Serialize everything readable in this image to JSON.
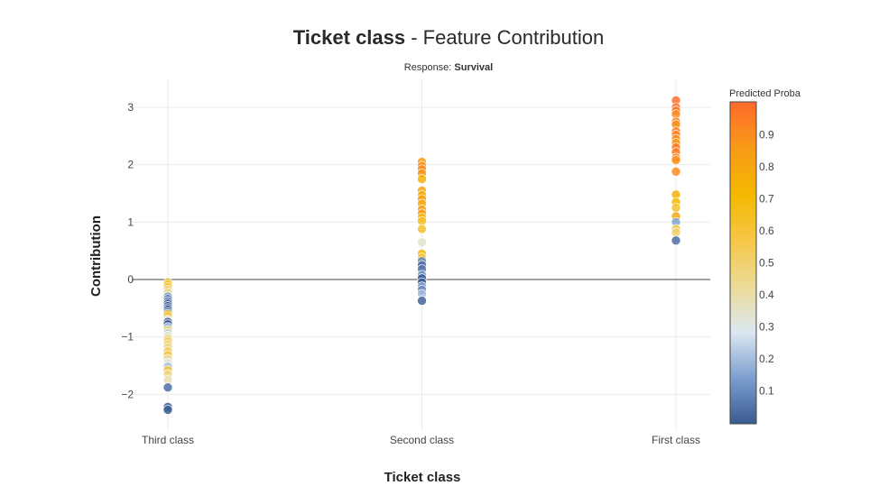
{
  "chart_data": {
    "type": "scatter",
    "title_bold": "Ticket class",
    "title_rest": " - Feature Contribution",
    "subtitle_label": "Response: ",
    "subtitle_value": "Survival",
    "xlabel": "Ticket class",
    "ylabel": "Contribution",
    "categories": [
      "Third class",
      "Second class",
      "First class"
    ],
    "ylim": [
      -2.7,
      3.4
    ],
    "yticks": [
      -2,
      -1,
      0,
      1,
      2,
      3
    ],
    "ytick_labels": [
      "−2",
      "−1",
      "0",
      "1",
      "2",
      "3"
    ],
    "grid": true,
    "colorbar": {
      "title": "Predicted Proba",
      "range": [
        0,
        1
      ],
      "ticks": [
        0.1,
        0.2,
        0.3,
        0.4,
        0.5,
        0.6,
        0.7,
        0.8,
        0.9
      ],
      "tick_labels": [
        "0.1",
        "0.2",
        "0.3",
        "0.4",
        "0.5",
        "0.6",
        "0.7",
        "0.8",
        "0.9"
      ],
      "colorscale": [
        "#3a5a92",
        "#7d9fcf",
        "#dce8f0",
        "#ecdb97",
        "#f6c745",
        "#f4b800",
        "#f99a18",
        "#ff6a2c"
      ]
    },
    "series": [
      {
        "category": "Third class",
        "points": [
          [
            -0.05,
            0.62
          ],
          [
            -0.09,
            0.66
          ],
          [
            -0.13,
            0.58
          ],
          [
            -0.18,
            0.5
          ],
          [
            -0.22,
            0.4
          ],
          [
            -0.3,
            0.12
          ],
          [
            -0.34,
            0.06
          ],
          [
            -0.38,
            0.08
          ],
          [
            -0.42,
            0.04
          ],
          [
            -0.46,
            0.02
          ],
          [
            -0.5,
            0.01
          ],
          [
            -0.53,
            0.02
          ],
          [
            -0.57,
            0.03
          ],
          [
            -0.6,
            0.62
          ],
          [
            -0.64,
            0.58
          ],
          [
            -0.7,
            0.3
          ],
          [
            -0.74,
            0.01
          ],
          [
            -0.78,
            0.0
          ],
          [
            -0.83,
            0.22
          ],
          [
            -0.88,
            0.5
          ],
          [
            -0.93,
            0.25
          ],
          [
            -0.98,
            0.33
          ],
          [
            -1.03,
            0.46
          ],
          [
            -1.08,
            0.56
          ],
          [
            -1.13,
            0.48
          ],
          [
            -1.18,
            0.44
          ],
          [
            -1.25,
            0.52
          ],
          [
            -1.32,
            0.62
          ],
          [
            -1.38,
            0.4
          ],
          [
            -1.45,
            0.3
          ],
          [
            -1.52,
            0.2
          ],
          [
            -1.58,
            0.58
          ],
          [
            -1.65,
            0.45
          ],
          [
            -1.75,
            0.38
          ],
          [
            -1.88,
            0.04
          ],
          [
            -2.22,
            0.01
          ],
          [
            -2.27,
            0.0
          ]
        ]
      },
      {
        "category": "Second class",
        "points": [
          [
            2.05,
            0.85
          ],
          [
            1.98,
            0.88
          ],
          [
            1.92,
            0.9
          ],
          [
            1.85,
            0.86
          ],
          [
            1.75,
            0.74
          ],
          [
            1.55,
            0.8
          ],
          [
            1.47,
            0.76
          ],
          [
            1.4,
            0.82
          ],
          [
            1.32,
            0.78
          ],
          [
            1.22,
            0.84
          ],
          [
            1.15,
            0.86
          ],
          [
            1.08,
            0.7
          ],
          [
            1.02,
            0.65
          ],
          [
            0.88,
            0.62
          ],
          [
            0.65,
            0.35
          ],
          [
            0.45,
            0.7
          ],
          [
            0.38,
            0.6
          ],
          [
            0.32,
            0.1
          ],
          [
            0.25,
            0.04
          ],
          [
            0.18,
            0.06
          ],
          [
            0.08,
            0.12
          ],
          [
            0.02,
            0.0
          ],
          [
            -0.05,
            0.01
          ],
          [
            -0.12,
            0.15
          ],
          [
            -0.18,
            0.1
          ],
          [
            -0.25,
            0.2
          ],
          [
            -0.37,
            0.02
          ]
        ]
      },
      {
        "category": "First class",
        "points": [
          [
            3.12,
            0.98
          ],
          [
            3.0,
            0.97
          ],
          [
            2.94,
            0.96
          ],
          [
            2.88,
            0.9
          ],
          [
            2.75,
            0.93
          ],
          [
            2.7,
            0.88
          ],
          [
            2.58,
            0.95
          ],
          [
            2.52,
            0.92
          ],
          [
            2.45,
            0.9
          ],
          [
            2.38,
            0.86
          ],
          [
            2.3,
            0.96
          ],
          [
            2.22,
            0.94
          ],
          [
            2.12,
            0.92
          ],
          [
            2.08,
            0.88
          ],
          [
            1.88,
            0.9
          ],
          [
            1.48,
            0.75
          ],
          [
            1.35,
            0.72
          ],
          [
            1.25,
            0.62
          ],
          [
            1.1,
            0.8
          ],
          [
            1.0,
            0.15
          ],
          [
            0.88,
            0.58
          ],
          [
            0.82,
            0.5
          ],
          [
            0.68,
            0.04
          ]
        ]
      }
    ]
  }
}
